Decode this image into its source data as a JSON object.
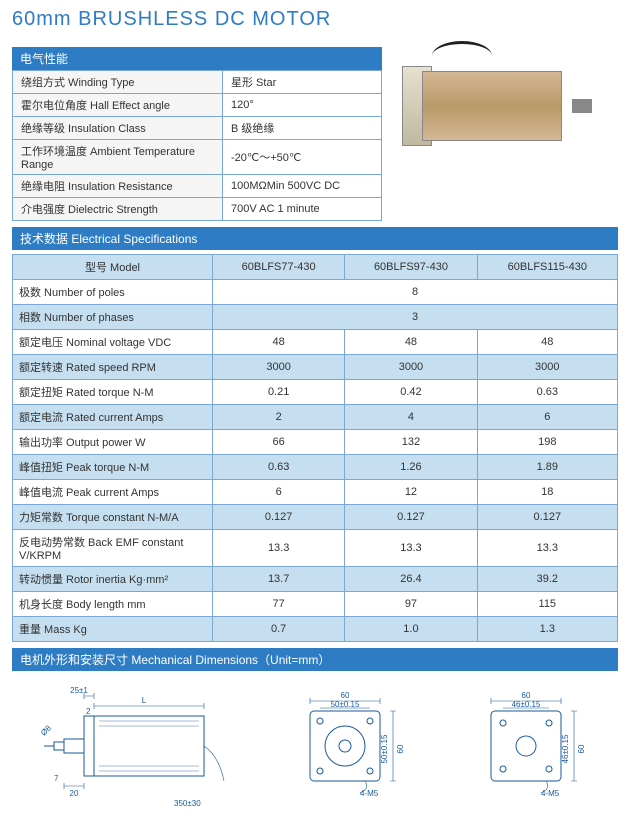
{
  "title": "60mm BRUSHLESS DC MOTOR",
  "sections": {
    "electrical_props": "电气性能",
    "elec_specs": "技术数据 Electrical Specifications",
    "mech_dims": "电机外形和安装尺寸 Mechanical Dimensions（Unit=mm）"
  },
  "props": [
    {
      "label": "绕组方式 Winding Type",
      "value": "星形 Star"
    },
    {
      "label": "霍尔电位角度 Hall Effect angle",
      "value": "120°"
    },
    {
      "label": "绝缘等级 Insulation Class",
      "value": "B 级绝缘"
    },
    {
      "label": "工作环境温度 Ambient Temperature Range",
      "value": "-20℃～+50℃"
    },
    {
      "label": "绝缘电阻 Insulation Resistance",
      "value": "100MΩMin 500VC DC"
    },
    {
      "label": "介电强度 Dielectric Strength",
      "value": "700V AC 1 minute"
    }
  ],
  "spec_header": {
    "model": "型号 Model",
    "m1": "60BLFS77-430",
    "m2": "60BLFS97-430",
    "m3": "60BLFS115-430"
  },
  "specs": [
    {
      "label": "极数 Number of poles",
      "span": true,
      "value": "8",
      "alt": false
    },
    {
      "label": "相数 Number of phases",
      "span": true,
      "value": "3",
      "alt": true
    },
    {
      "label": "额定电压 Nominal voltage VDC",
      "v1": "48",
      "v2": "48",
      "v3": "48",
      "alt": false
    },
    {
      "label": "额定转速 Rated speed RPM",
      "v1": "3000",
      "v2": "3000",
      "v3": "3000",
      "alt": true
    },
    {
      "label": "额定扭矩 Rated torque N-M",
      "v1": "0.21",
      "v2": "0.42",
      "v3": "0.63",
      "alt": false
    },
    {
      "label": "额定电流 Rated current Amps",
      "v1": "2",
      "v2": "4",
      "v3": "6",
      "alt": true
    },
    {
      "label": "输出功率 Output power W",
      "v1": "66",
      "v2": "132",
      "v3": "198",
      "alt": false
    },
    {
      "label": "峰值扭矩 Peak torque N-M",
      "v1": "0.63",
      "v2": "1.26",
      "v3": "1.89",
      "alt": true
    },
    {
      "label": "峰值电流 Peak current Amps",
      "v1": "6",
      "v2": "12",
      "v3": "18",
      "alt": false
    },
    {
      "label": "力矩常数 Torque constant N-M/A",
      "v1": "0.127",
      "v2": "0.127",
      "v3": "0.127",
      "alt": true
    },
    {
      "label": "反电动势常数 Back EMF constant V/KRPM",
      "v1": "13.3",
      "v2": "13.3",
      "v3": "13.3",
      "alt": false
    },
    {
      "label": "转动惯量 Rotor inertia Kg·mm²",
      "v1": "13.7",
      "v2": "26.4",
      "v3": "39.2",
      "alt": true
    },
    {
      "label": "机身长度 Body length mm",
      "v1": "77",
      "v2": "97",
      "v3": "115",
      "alt": false
    },
    {
      "label": "重量 Mass Kg",
      "v1": "0.7",
      "v2": "1.0",
      "v3": "1.3",
      "alt": true
    }
  ],
  "dims": {
    "side": {
      "L": "L",
      "t25": "25±1",
      "t2": "2",
      "t20": "20",
      "t7": "7",
      "cable": "350±30",
      "shaft": "Ø8"
    },
    "front": {
      "w60": "60",
      "w50": "50±0.15",
      "h60": "60",
      "h50": "50±0.15",
      "holes": "4-M5"
    },
    "back": {
      "w60": "60",
      "w46": "46±0.15",
      "h60": "60",
      "h46": "46±0.15",
      "holes": "4-M5"
    }
  },
  "colors": {
    "brand": "#2e7cc4",
    "border": "#7aa8d6",
    "altbg": "#c5dff0",
    "line": "#1a5a9e"
  }
}
